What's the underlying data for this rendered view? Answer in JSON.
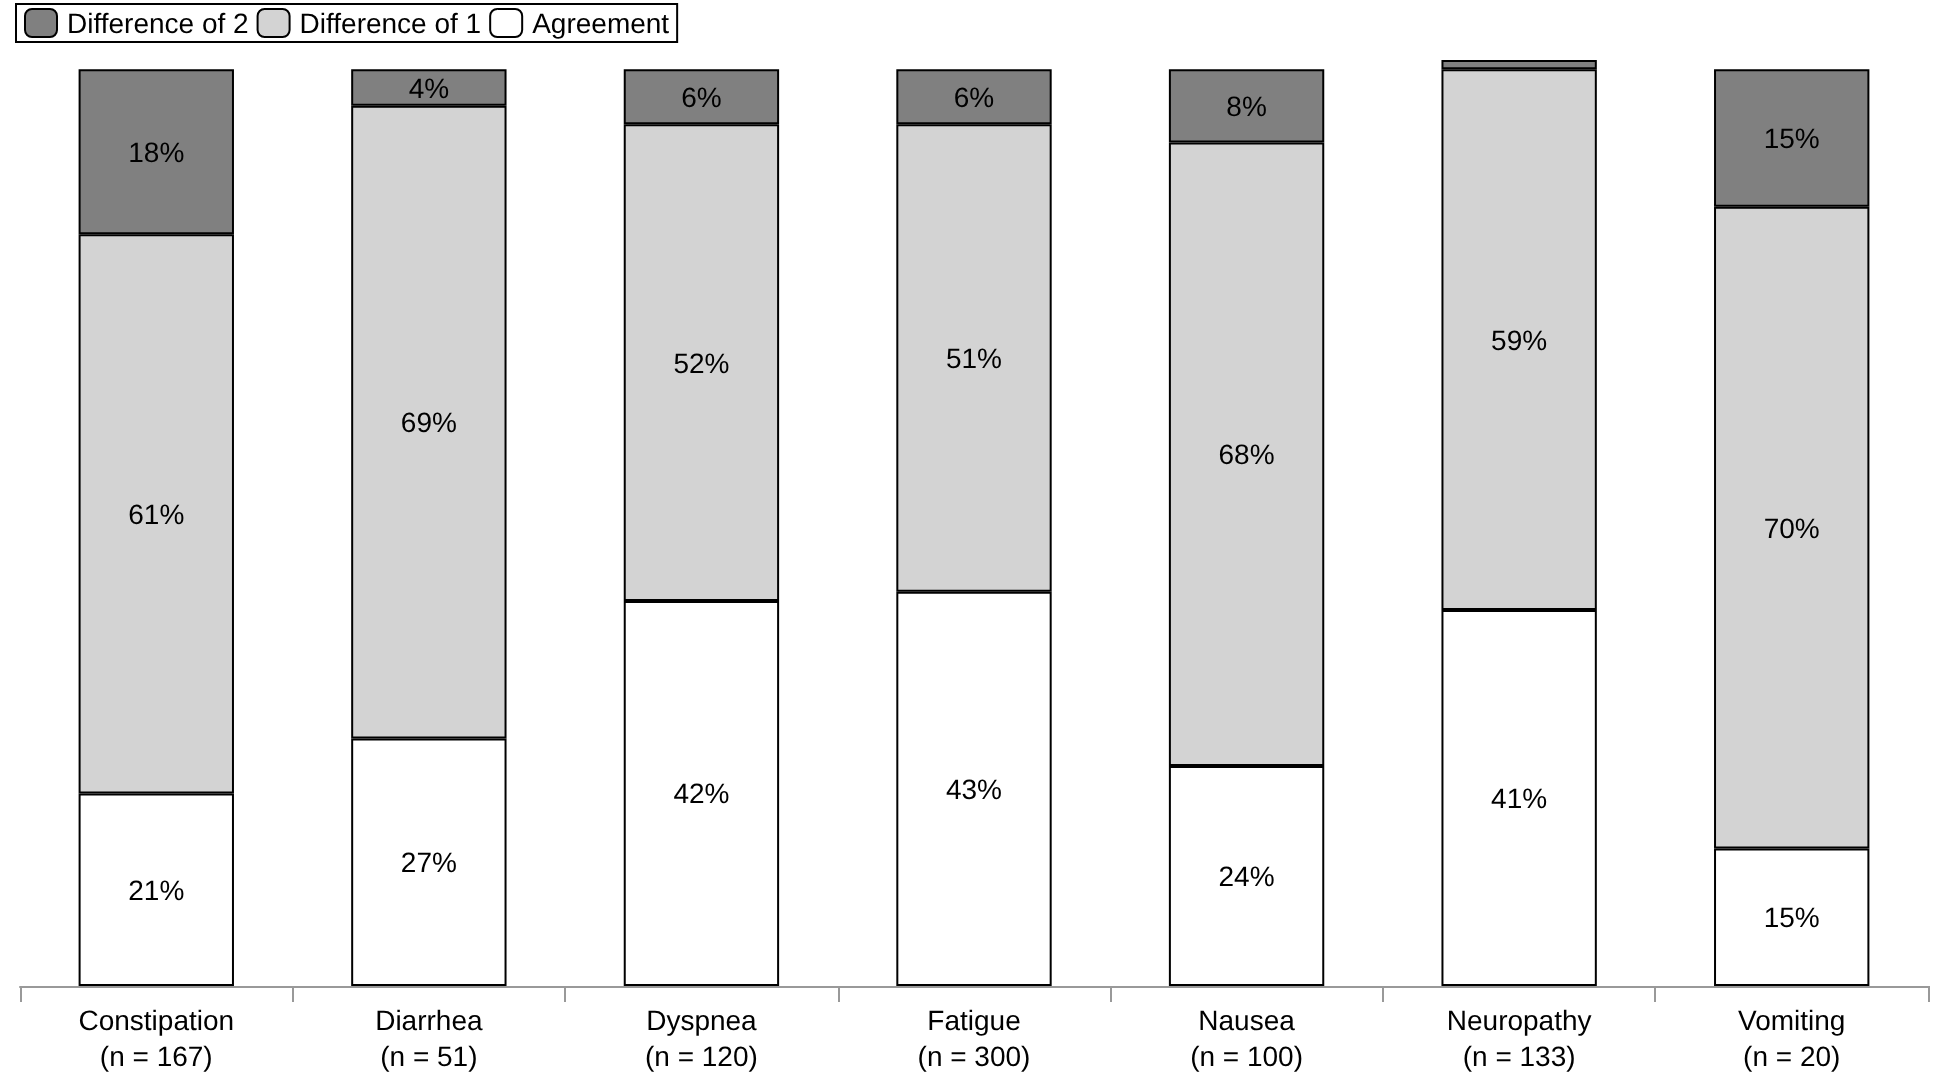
{
  "chart_data": {
    "type": "bar",
    "stacked": true,
    "legend": "top left",
    "categories": [
      "Constipation\n(n = 167)",
      "Diarrhea\n(n = 51)",
      "Dyspnea\n(n = 120)",
      "Fatigue\n(n = 300)",
      "Nausea\n(n = 100)",
      "Neuropathy\n(n = 133)",
      "Vomiting\n(n = 20)"
    ],
    "series": [
      {
        "name": "Agreement",
        "color": "#ffffff",
        "values": [
          21,
          27,
          42,
          43,
          24,
          41,
          15
        ],
        "value_labels": [
          "21%",
          "27%",
          "42%",
          "43%",
          "24%",
          "41%",
          "15%"
        ]
      },
      {
        "name": "Difference of 1",
        "color": "#d3d3d3",
        "values": [
          61,
          69,
          52,
          51,
          68,
          59,
          70
        ],
        "value_labels": [
          "61%",
          "69%",
          "52%",
          "51%",
          "68%",
          "59%",
          "70%"
        ]
      },
      {
        "name": "Difference of 2",
        "color": "#808080",
        "values": [
          18,
          4,
          6,
          6,
          8,
          1,
          15
        ],
        "value_labels": [
          "18%",
          "4%",
          "6%",
          "6%",
          "8%",
          null,
          "15%"
        ]
      }
    ]
  }
}
